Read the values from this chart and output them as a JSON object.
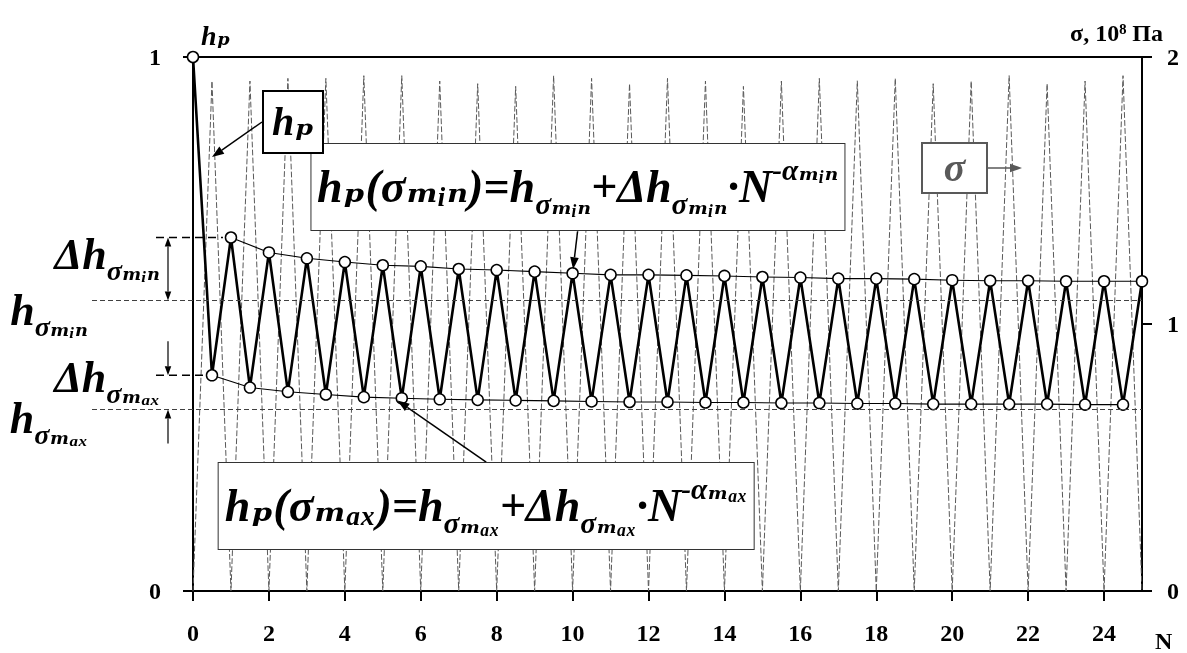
{
  "chart_data": {
    "type": "line",
    "xlabel": "N",
    "ylabel": "hₚ",
    "y2label": "σ, 10⁸ Па",
    "xlim": [
      0,
      25
    ],
    "xticks": [
      0,
      2,
      4,
      6,
      8,
      10,
      12,
      14,
      16,
      18,
      20,
      22,
      24
    ],
    "ylim": [
      0,
      1
    ],
    "yticks": [
      0,
      1
    ],
    "y2lim": [
      0,
      2
    ],
    "y2ticks": [
      0,
      1,
      2
    ],
    "series": [
      {
        "name": "hₚ",
        "color": "#000000",
        "marker": "circle",
        "line_style": "solid",
        "x": [
          0,
          0.5,
          1,
          1.5,
          2,
          2.5,
          3,
          3.5,
          4,
          4.5,
          5,
          5.5,
          6,
          6.5,
          7,
          7.5,
          8,
          8.5,
          9,
          9.5,
          10,
          10.5,
          11,
          11.5,
          12,
          12.5,
          13,
          13.5,
          14,
          14.5,
          15,
          15.5,
          16,
          16.5,
          17,
          17.5,
          18,
          18.5,
          19,
          19.5,
          20,
          20.5,
          21,
          21.5,
          22,
          22.5,
          23,
          23.5,
          24,
          24.5,
          25
        ],
        "values": [
          1,
          0.404,
          0.662,
          0.381,
          0.634,
          0.373,
          0.623,
          0.368,
          0.616,
          0.363,
          0.61,
          0.361,
          0.608,
          0.359,
          0.603,
          0.358,
          0.601,
          0.357,
          0.598,
          0.356,
          0.595,
          0.355,
          0.592,
          0.354,
          0.592,
          0.354,
          0.591,
          0.353,
          0.59,
          0.353,
          0.588,
          0.352,
          0.587,
          0.352,
          0.585,
          0.351,
          0.585,
          0.351,
          0.584,
          0.35,
          0.582,
          0.35,
          0.581,
          0.35,
          0.581,
          0.35,
          0.58,
          0.349,
          0.58,
          0.349,
          0.58
        ]
      },
      {
        "color": "#000000",
        "marker": "none",
        "line_style": "solid",
        "x": [
          1,
          2,
          3,
          4,
          5,
          6,
          7,
          8,
          9,
          10,
          11,
          12,
          13,
          14,
          15,
          16,
          17,
          18,
          19,
          20,
          21,
          22,
          23,
          24,
          25
        ],
        "values": [
          0.662,
          0.634,
          0.623,
          0.616,
          0.61,
          0.608,
          0.603,
          0.601,
          0.598,
          0.595,
          0.592,
          0.592,
          0.591,
          0.59,
          0.588,
          0.587,
          0.585,
          0.585,
          0.584,
          0.582,
          0.581,
          0.581,
          0.58,
          0.58,
          0.58
        ]
      },
      {
        "color": "#000000",
        "marker": "none",
        "line_style": "solid",
        "x": [
          0.5,
          1.5,
          2.5,
          3.5,
          4.5,
          5.5,
          6.5,
          7.5,
          8.5,
          9.5,
          10.5,
          11.5,
          12.5,
          13.5,
          14.5,
          15.5,
          16.5,
          17.5,
          18.5,
          19.5,
          20.5,
          21.5,
          22.5,
          23.5,
          24.5
        ],
        "values": [
          0.404,
          0.381,
          0.373,
          0.368,
          0.363,
          0.361,
          0.359,
          0.358,
          0.357,
          0.356,
          0.355,
          0.354,
          0.354,
          0.353,
          0.353,
          0.352,
          0.352,
          0.351,
          0.351,
          0.35,
          0.35,
          0.35,
          0.35,
          0.349,
          0.349
        ]
      },
      {
        "name": "σ",
        "color": "#595959",
        "axis": "y2",
        "marker": "none",
        "line_style": "dashed",
        "x": [
          0,
          0.5,
          1,
          1.5,
          2,
          2.5,
          3,
          3.5,
          4,
          4.5,
          5,
          5.5,
          6,
          6.5,
          7,
          7.5,
          8,
          8.5,
          9,
          9.5,
          10,
          10.5,
          11,
          11.5,
          12,
          12.5,
          13,
          13.5,
          14,
          14.5,
          15,
          15.5,
          16,
          16.5,
          17,
          17.5,
          18,
          18.5,
          19,
          19.5,
          20,
          20.5,
          21,
          21.5,
          22,
          22.5,
          23,
          23.5,
          24,
          24.5,
          25
        ],
        "values": [
          0,
          1.91,
          0,
          1.91,
          0,
          1.92,
          0,
          1.92,
          0,
          1.93,
          0,
          1.93,
          0,
          1.91,
          0,
          1.9,
          0,
          1.89,
          0,
          1.93,
          0,
          1.92,
          0,
          1.9,
          0,
          1.92,
          0,
          1.91,
          0,
          1.89,
          0,
          1.91,
          0,
          1.92,
          0,
          1.91,
          0,
          1.92,
          0,
          1.9,
          0,
          1.91,
          0,
          1.93,
          0,
          1.9,
          0,
          1.91,
          0,
          1.93,
          0
        ]
      }
    ],
    "ref_lines": [
      {
        "axis": "y",
        "value": 0.544,
        "label": "h$_{σₘᵢₙ}$",
        "line_style": "dashed",
        "color": "#404040"
      },
      {
        "axis": "y",
        "value": 0.34,
        "label": "h$_{σₘₐₓ}$",
        "line_style": "dashed",
        "color": "#404040"
      }
    ],
    "annotations": [
      {
        "text": "hₚ(σₘᵢₙ)=h$_{σₘᵢₙ}$+Δh$_{σₘᵢₙ}$·N$^{-αₘᵢₙ}$",
        "x": 10,
        "y": 0.595
      },
      {
        "text": "Δh$_{σₘᵢₙ}$",
        "x": 1,
        "y": 0.662
      },
      {
        "text": "Δh$_{σₘₐₓ}$",
        "x": 0.5,
        "y": 0.404
      },
      {
        "text": "hₚ(σₘₐₓ)=h$_{σₘₐₓ}$+Δh$_{σₘₐₓ}$·N$^{-αₘₐₓ}$",
        "x": 5.3,
        "y": 0.361
      }
    ]
  }
}
